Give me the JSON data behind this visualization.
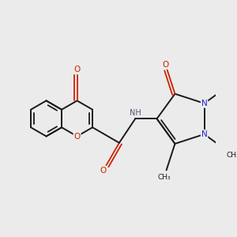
{
  "bg": "#ebebeb",
  "bc": "#1a1a1a",
  "nc": "#2222cc",
  "oc": "#cc2200",
  "hc": "#555577",
  "lw": 1.4,
  "lw_dbl": 1.3,
  "fs": 7.5,
  "figsize": [
    3.0,
    3.0
  ],
  "dpi": 100,
  "xlim": [
    -0.5,
    6.5
  ],
  "ylim": [
    -0.5,
    5.5
  ]
}
